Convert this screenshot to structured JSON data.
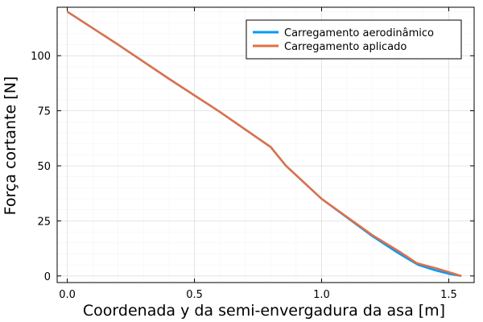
{
  "chart_data": {
    "type": "line",
    "xlabel": "Coordenada y da semi-envergadura da asa [m]",
    "ylabel": "Força cortante [N]",
    "xlim": [
      -0.04,
      1.6
    ],
    "ylim": [
      -3,
      122
    ],
    "xticks": [
      0.0,
      0.5,
      1.0,
      1.5
    ],
    "xtick_labels": [
      "0.0",
      "0.5",
      "1.0",
      "1.5"
    ],
    "yticks": [
      0,
      25,
      50,
      75,
      100
    ],
    "ytick_labels": [
      "0",
      "25",
      "50",
      "75",
      "100"
    ],
    "grid": true,
    "legend_position": "top-right",
    "series": [
      {
        "name": "Carregamento aerodinâmico",
        "color": "#009af9",
        "x": [
          0.0,
          0.2,
          0.4,
          0.6,
          0.8,
          0.86,
          1.0,
          1.2,
          1.3,
          1.38,
          1.45,
          1.5,
          1.55
        ],
        "y": [
          120,
          105,
          89.5,
          74.5,
          58.5,
          50,
          35,
          18,
          10.5,
          5,
          2.5,
          1,
          0
        ]
      },
      {
        "name": "Carregamento aplicado",
        "color": "#e26f46",
        "x": [
          0.0,
          0.2,
          0.4,
          0.6,
          0.8,
          0.86,
          1.0,
          1.2,
          1.3,
          1.375,
          1.45,
          1.5,
          1.55
        ],
        "y": [
          120,
          105,
          89.5,
          74.5,
          58.5,
          50,
          35,
          18.5,
          11.5,
          5.8,
          3.5,
          1.8,
          0
        ]
      }
    ]
  }
}
